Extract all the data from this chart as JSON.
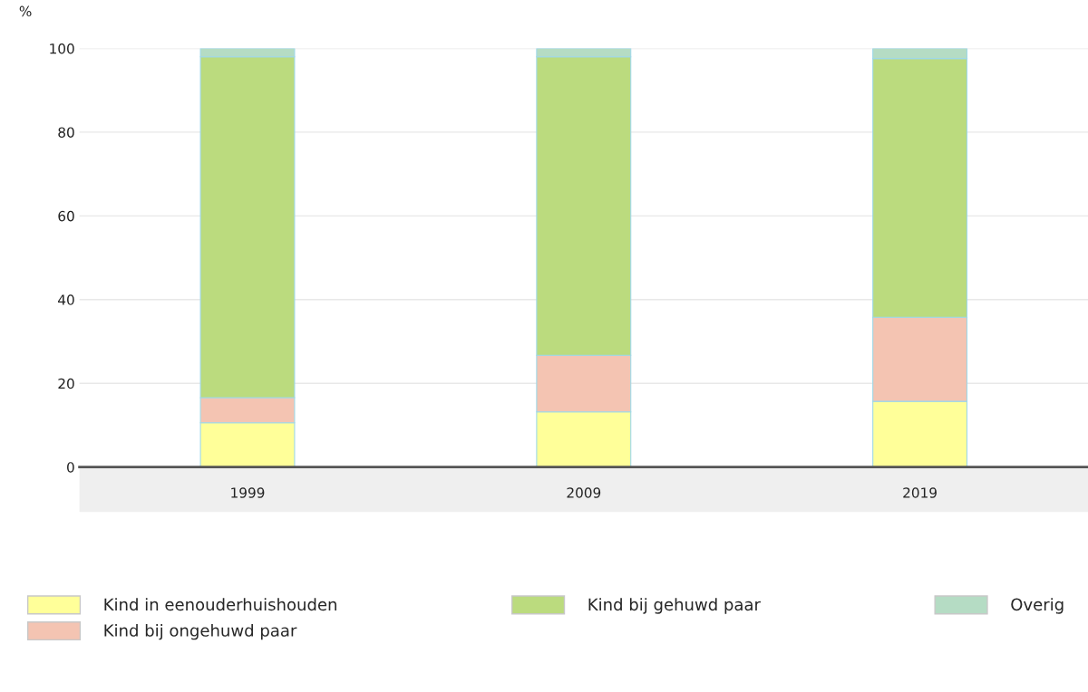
{
  "chart_data": {
    "type": "bar",
    "ylabel": "%",
    "categories": [
      "1999",
      "2009",
      "2019"
    ],
    "stacked": true,
    "series": [
      {
        "name": "Kind in eenouderhuishouden",
        "color": "#ffff99",
        "values": [
          10.6,
          13.2,
          15.7
        ]
      },
      {
        "name": "Kind bij ongehuwd paar",
        "color": "#f4c4b2",
        "values": [
          6.0,
          13.5,
          20.1
        ]
      },
      {
        "name": "Kind bij gehuwd paar",
        "color": "#bbdb7e",
        "values": [
          81.4,
          71.3,
          61.8
        ]
      },
      {
        "name": "Overig",
        "color": "#b5dcc4",
        "values": [
          2.0,
          2.0,
          2.4
        ]
      }
    ],
    "ylim": [
      0,
      100
    ],
    "yticks": [
      0,
      20,
      40,
      60,
      80,
      100
    ],
    "grid": "y",
    "legend": "bottom"
  }
}
